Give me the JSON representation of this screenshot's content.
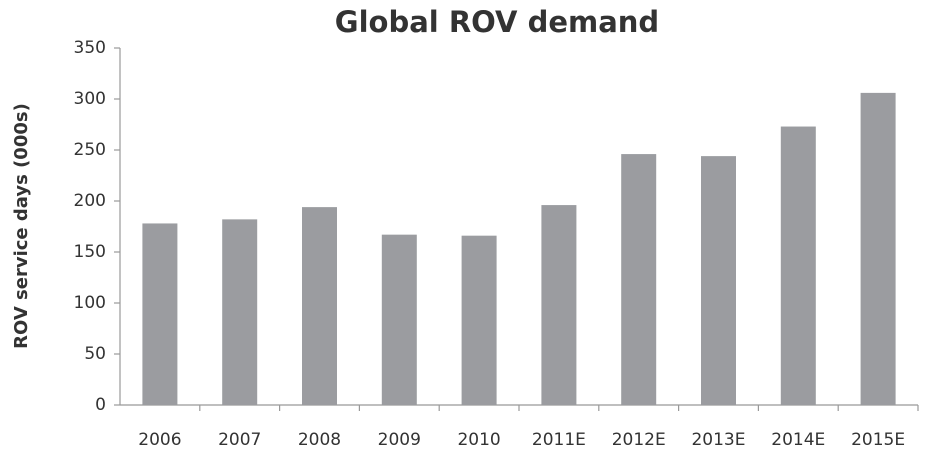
{
  "chart_data": {
    "type": "bar",
    "title": "Global ROV demand",
    "y_label": "ROV service days (000s)",
    "categories": [
      "2006",
      "2007",
      "2008",
      "2009",
      "2010",
      "2011E",
      "2012E",
      "2013E",
      "2014E",
      "2015E"
    ],
    "values": [
      178,
      182,
      194,
      167,
      166,
      196,
      246,
      244,
      273,
      306
    ],
    "color": "#9b9ca0",
    "ylim": [
      0,
      350
    ],
    "yticks": [
      0,
      50,
      100,
      150,
      200,
      250,
      300,
      350
    ],
    "grid": false
  }
}
